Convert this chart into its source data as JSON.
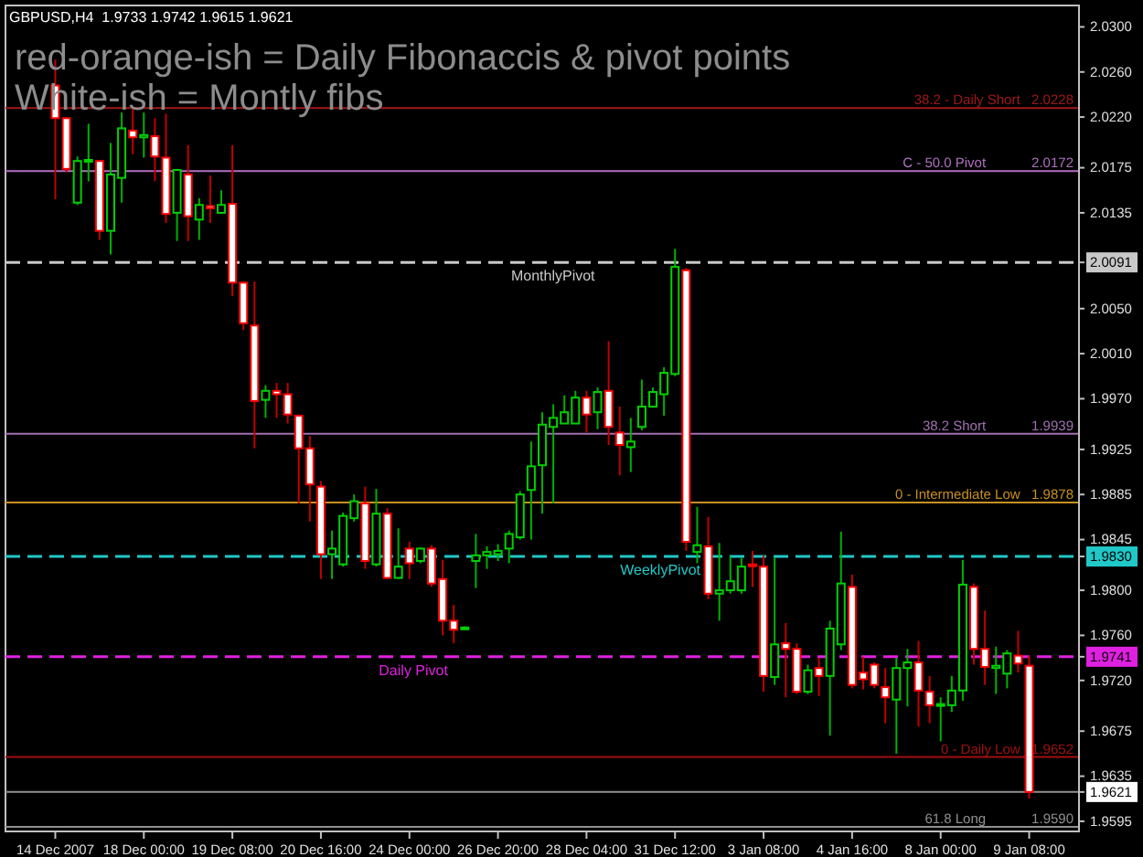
{
  "chart_data": {
    "type": "candlestick",
    "title": "GBPUSD,H4  1.9733 1.9742 1.9615 1.9621",
    "annotations": [
      "red-orange-ish = Daily Fibonaccis & pivot points",
      "White-ish = Montly fibs"
    ],
    "categories": [
      "14 Dec 2007",
      null,
      null,
      null,
      null,
      null,
      null,
      null,
      "18 Dec 00:00",
      null,
      null,
      null,
      null,
      null,
      null,
      null,
      "19 Dec 08:00",
      null,
      null,
      null,
      null,
      null,
      null,
      null,
      "20 Dec 16:00",
      null,
      null,
      null,
      null,
      null,
      null,
      null,
      "24 Dec 00:00",
      null,
      null,
      null,
      null,
      null,
      null,
      null,
      "26 Dec 20:00",
      null,
      null,
      null,
      null,
      null,
      null,
      null,
      "28 Dec 04:00",
      null,
      null,
      null,
      null,
      null,
      null,
      null,
      "31 Dec 12:00",
      null,
      null,
      null,
      null,
      null,
      null,
      null,
      "3 Jan 08:00",
      null,
      null,
      null,
      null,
      null,
      null,
      null,
      "4 Jan 16:00",
      null,
      null,
      null,
      null,
      null,
      null,
      null,
      "8 Jan 00:00",
      null,
      null,
      null,
      null,
      null,
      null,
      null,
      "9 Jan 08:00"
    ],
    "ohlc": [
      [
        2.0248,
        2.0271,
        2.0147,
        2.0219
      ],
      [
        2.0219,
        2.022,
        2.0171,
        2.0174
      ],
      [
        2.0144,
        2.0185,
        2.0142,
        2.0181
      ],
      [
        2.0181,
        2.0214,
        2.0163,
        2.0182
      ],
      [
        2.0181,
        2.0182,
        2.0111,
        2.0119
      ],
      [
        2.0119,
        2.0197,
        2.0098,
        2.0169
      ],
      [
        2.0166,
        2.0224,
        2.0144,
        2.021
      ],
      [
        2.0208,
        2.0227,
        2.0187,
        2.0202
      ],
      [
        2.0202,
        2.0224,
        2.0184,
        2.0204
      ],
      [
        2.0203,
        2.0219,
        2.0163,
        2.0185
      ],
      [
        2.0184,
        2.0223,
        2.0126,
        2.0134
      ],
      [
        2.0135,
        2.0174,
        2.011,
        2.0173
      ],
      [
        2.0169,
        2.0195,
        2.011,
        2.0132
      ],
      [
        2.0129,
        2.0148,
        2.0111,
        2.0142
      ],
      [
        2.0141,
        2.0168,
        2.0126,
        2.0139
      ],
      [
        2.0135,
        2.0155,
        2.0134,
        2.0142
      ],
      [
        2.0143,
        2.0195,
        2.0061,
        2.0073
      ],
      [
        2.0073,
        2.0074,
        2.0031,
        2.0037
      ],
      [
        2.0035,
        2.0074,
        1.9926,
        1.9968
      ],
      [
        1.9969,
        1.9982,
        1.9953,
        1.9977
      ],
      [
        1.9977,
        1.9984,
        1.9953,
        1.9974
      ],
      [
        1.9974,
        1.9984,
        1.9948,
        1.9956
      ],
      [
        1.9955,
        1.9955,
        1.9877,
        1.9926
      ],
      [
        1.9926,
        1.9937,
        1.9861,
        1.9894
      ],
      [
        1.9892,
        1.9897,
        1.981,
        1.9832
      ],
      [
        1.9832,
        1.9853,
        1.981,
        1.9837
      ],
      [
        1.9823,
        1.9869,
        1.9821,
        1.9866
      ],
      [
        1.9864,
        1.9885,
        1.9861,
        1.9879
      ],
      [
        1.9877,
        1.9892,
        1.9819,
        1.9826
      ],
      [
        1.9823,
        1.989,
        1.9821,
        1.9868
      ],
      [
        1.9868,
        1.9873,
        1.981,
        1.9811
      ],
      [
        1.9811,
        1.9855,
        1.981,
        1.9821
      ],
      [
        1.9837,
        1.9843,
        1.981,
        1.9824
      ],
      [
        1.9826,
        1.9838,
        1.9824,
        1.9837
      ],
      [
        1.9837,
        1.984,
        1.9803,
        1.9806
      ],
      [
        1.981,
        1.9827,
        1.976,
        1.9773
      ],
      [
        1.9773,
        1.9787,
        1.9753,
        1.9765
      ],
      [
        1.9767,
        1.9768,
        1.9766,
        1.9767
      ],
      [
        1.9826,
        1.985,
        1.9802,
        1.9831
      ],
      [
        1.9831,
        1.9839,
        1.9819,
        1.9834
      ],
      [
        1.9832,
        1.9841,
        1.9826,
        1.9835
      ],
      [
        1.9837,
        1.9853,
        1.9824,
        1.985
      ],
      [
        1.9847,
        1.9888,
        1.9845,
        1.9885
      ],
      [
        1.9889,
        1.9932,
        1.9845,
        1.991
      ],
      [
        1.9911,
        1.9958,
        1.9868,
        1.9947
      ],
      [
        1.9945,
        1.9965,
        1.9877,
        1.9953
      ],
      [
        1.9948,
        1.9973,
        1.9948,
        1.9958
      ],
      [
        1.9948,
        1.9977,
        1.9948,
        1.9971
      ],
      [
        1.9971,
        1.9977,
        1.994,
        1.9956
      ],
      [
        1.9958,
        1.998,
        1.9943,
        1.9976
      ],
      [
        1.9977,
        2.0021,
        1.9929,
        1.9945
      ],
      [
        1.994,
        1.9963,
        1.9902,
        1.9929
      ],
      [
        1.9927,
        1.9953,
        1.9905,
        1.9932
      ],
      [
        1.9945,
        1.9987,
        1.9942,
        1.9963
      ],
      [
        1.9963,
        1.998,
        1.9962,
        1.9976
      ],
      [
        1.9974,
        1.9998,
        1.9955,
        1.9993
      ],
      [
        1.9992,
        2.0103,
        1.999,
        2.0087
      ],
      [
        2.0084,
        2.0086,
        1.9835,
        1.9843
      ],
      [
        1.9834,
        1.9874,
        1.9824,
        1.984
      ],
      [
        1.9839,
        1.9865,
        1.9792,
        1.9797
      ],
      [
        1.9797,
        1.9842,
        1.9773,
        1.98
      ],
      [
        1.98,
        1.983,
        1.9797,
        1.9808
      ],
      [
        1.98,
        1.9829,
        1.9797,
        1.9821
      ],
      [
        1.9823,
        1.9835,
        1.9803,
        1.9822
      ],
      [
        1.9821,
        1.9831,
        1.971,
        1.9724
      ],
      [
        1.9723,
        1.9829,
        1.9716,
        1.9752
      ],
      [
        1.9753,
        1.9771,
        1.9705,
        1.9748
      ],
      [
        1.9748,
        1.9753,
        1.9708,
        1.971
      ],
      [
        1.971,
        1.9734,
        1.9708,
        1.9729
      ],
      [
        1.9731,
        1.974,
        1.9706,
        1.9724
      ],
      [
        1.9724,
        1.9773,
        1.9671,
        1.9766
      ],
      [
        1.9752,
        1.9852,
        1.9747,
        1.9806
      ],
      [
        1.9803,
        1.9814,
        1.9713,
        1.9716
      ],
      [
        1.9727,
        1.9741,
        1.9712,
        1.9721
      ],
      [
        1.9734,
        1.9736,
        1.9713,
        1.9716
      ],
      [
        1.9714,
        1.9731,
        1.9682,
        1.9705
      ],
      [
        1.9703,
        1.974,
        1.9655,
        1.9731
      ],
      [
        1.9731,
        1.9748,
        1.9697,
        1.9736
      ],
      [
        1.9736,
        1.9755,
        1.9679,
        1.9711
      ],
      [
        1.971,
        1.9724,
        1.9682,
        1.9698
      ],
      [
        1.9698,
        1.9705,
        1.9666,
        1.9699
      ],
      [
        1.9698,
        1.9724,
        1.9692,
        1.9711
      ],
      [
        1.9711,
        1.9827,
        1.9702,
        1.9805
      ],
      [
        1.9803,
        1.9806,
        1.9734,
        1.9748
      ],
      [
        1.9748,
        1.9782,
        1.9716,
        1.9732
      ],
      [
        1.9731,
        1.975,
        1.9708,
        1.9733
      ],
      [
        1.9726,
        1.9747,
        1.9713,
        1.9744
      ],
      [
        1.9742,
        1.9764,
        1.9727,
        1.9735
      ],
      [
        1.9733,
        1.9742,
        1.9615,
        1.9621
      ]
    ],
    "ylim": [
      1.9586,
      2.0319
    ],
    "yticks": [
      {
        "value": 2.03,
        "label": "2.0300"
      },
      {
        "value": 2.026,
        "label": "2.0260"
      },
      {
        "value": 2.022,
        "label": "2.0220"
      },
      {
        "value": 2.0175,
        "label": "2.0175"
      },
      {
        "value": 2.0135,
        "label": "2.0135"
      },
      {
        "value": 2.005,
        "label": "2.0050"
      },
      {
        "value": 2.001,
        "label": "2.0010"
      },
      {
        "value": 1.997,
        "label": "1.9970"
      },
      {
        "value": 1.9925,
        "label": "1.9925"
      },
      {
        "value": 1.9885,
        "label": "1.9885"
      },
      {
        "value": 2.0091,
        "label": "2.0091"
      },
      {
        "value": 1.9845,
        "label": "1.9845"
      },
      {
        "value": 1.983,
        "label": "1.9830"
      },
      {
        "value": 1.9741,
        "label": "1.9741"
      },
      {
        "value": 1.9621,
        "label": "1.9621"
      },
      {
        "value": 1.98,
        "label": "1.9800"
      },
      {
        "value": 1.976,
        "label": "1.9760"
      },
      {
        "value": 1.972,
        "label": "1.9720"
      },
      {
        "value": 1.9675,
        "label": "1.9675"
      },
      {
        "value": 1.9635,
        "label": "1.9635"
      },
      {
        "value": 1.9595,
        "label": "1.9595"
      }
    ],
    "ref_lines": [
      {
        "axis": "y",
        "value": 2.0228,
        "label": "38.2 - Daily Short   2.0228",
        "color": "#a01818",
        "line_style": "solid"
      },
      {
        "axis": "y",
        "value": 2.0172,
        "label": "C - 50.0 Pivot            2.0172",
        "color": "#b070c0",
        "line_style": "solid"
      },
      {
        "axis": "y",
        "value": 2.0091,
        "label": "MonthlyPivot",
        "color": "#c8c8c8",
        "line_style": "dashed"
      },
      {
        "axis": "y",
        "value": 1.9939,
        "label": "38.2 Short            1.9939",
        "color": "#a070b0",
        "line_style": "solid"
      },
      {
        "axis": "y",
        "value": 1.9878,
        "label": "0 - Intermediate Low   1.9878",
        "color": "#c89020",
        "line_style": "solid"
      },
      {
        "axis": "y",
        "value": 1.983,
        "label": "WeeklyPivot",
        "color": "#20c8c8",
        "line_style": "dashed"
      },
      {
        "axis": "y",
        "value": 1.9741,
        "label": "Daily Pivot",
        "color": "#e020e0",
        "line_style": "dashed"
      },
      {
        "axis": "y",
        "value": 1.9652,
        "label": "0 - Daily Low   1.9652",
        "color": "#a01010",
        "line_style": "solid"
      },
      {
        "axis": "y",
        "value": 1.9621,
        "label": null,
        "color": "#909090",
        "line_style": "solid"
      },
      {
        "axis": "y",
        "value": 1.959,
        "label": "61.8 Long            1.9590",
        "color": "#909090",
        "line_style": "solid"
      }
    ]
  }
}
